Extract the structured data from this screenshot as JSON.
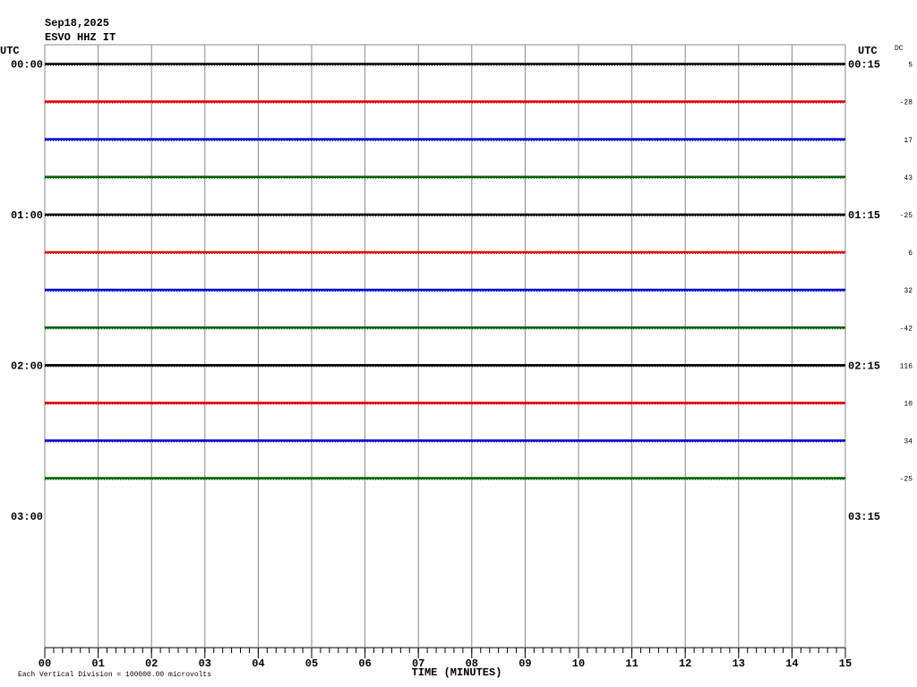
{
  "chart_data": {
    "type": "helicorder",
    "date": "Sep18,2025",
    "station": "ESVO HHZ IT",
    "left_axis_title": "UTC",
    "right_axis_title": "UTC",
    "dc_title": "DC",
    "xlabel": "TIME (MINUTES)",
    "scale_note": "Each Vertical Division = 100000.00 microvolts",
    "xlim": [
      0,
      15
    ],
    "xticks": [
      {
        "value": 0,
        "label": "00"
      },
      {
        "value": 1,
        "label": "01"
      },
      {
        "value": 2,
        "label": "02"
      },
      {
        "value": 3,
        "label": "03"
      },
      {
        "value": 4,
        "label": "04"
      },
      {
        "value": 5,
        "label": "05"
      },
      {
        "value": 6,
        "label": "06"
      },
      {
        "value": 7,
        "label": "07"
      },
      {
        "value": 8,
        "label": "08"
      },
      {
        "value": 9,
        "label": "09"
      },
      {
        "value": 10,
        "label": "10"
      },
      {
        "value": 11,
        "label": "11"
      },
      {
        "value": 12,
        "label": "12"
      },
      {
        "value": 13,
        "label": "13"
      },
      {
        "value": 14,
        "label": "14"
      },
      {
        "value": 15,
        "label": "15"
      }
    ],
    "left_labels": [
      "00:00",
      null,
      null,
      null,
      "01:00",
      null,
      null,
      null,
      "02:00",
      null,
      null,
      null,
      "03:00"
    ],
    "right_labels": [
      "00:15",
      null,
      null,
      null,
      "01:15",
      null,
      null,
      null,
      "02:15",
      null,
      null,
      null,
      "03:15"
    ],
    "series": [
      {
        "color": "#000000",
        "dc": 5
      },
      {
        "color": "#e00000",
        "dc": -28
      },
      {
        "color": "#0000d0",
        "dc": 17
      },
      {
        "color": "#006000",
        "dc": 43
      },
      {
        "color": "#000000",
        "dc": -25
      },
      {
        "color": "#e00000",
        "dc": 6
      },
      {
        "color": "#0000d0",
        "dc": 32
      },
      {
        "color": "#006000",
        "dc": -42
      },
      {
        "color": "#000000",
        "dc": 116
      },
      {
        "color": "#e00000",
        "dc": 10
      },
      {
        "color": "#0000d0",
        "dc": 34
      },
      {
        "color": "#006000",
        "dc": -25
      }
    ]
  }
}
